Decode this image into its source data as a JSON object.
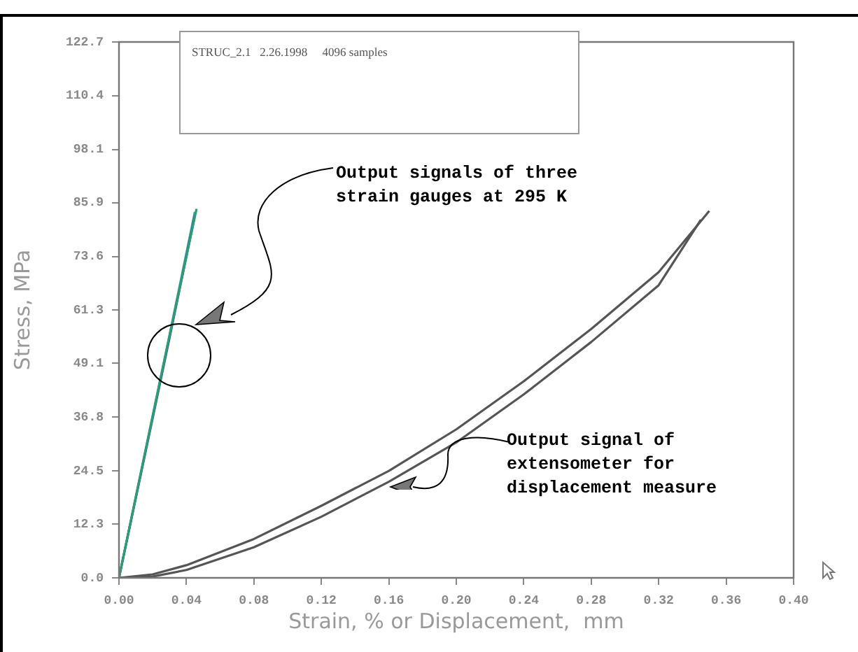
{
  "chart_data": {
    "type": "line",
    "xlabel": "Strain, % or Displacement,  mm",
    "ylabel": "Stress, MPa",
    "xlim": [
      0,
      0.4
    ],
    "ylim": [
      0,
      122.7
    ],
    "xticks": [
      {
        "value": 0,
        "label": "0.00"
      },
      {
        "value": 0.04,
        "label": "0.04"
      },
      {
        "value": 0.08,
        "label": "0.08"
      },
      {
        "value": 0.12,
        "label": "0.12"
      },
      {
        "value": 0.16,
        "label": "0.16"
      },
      {
        "value": 0.2,
        "label": "0.20"
      },
      {
        "value": 0.24,
        "label": "0.24"
      },
      {
        "value": 0.28,
        "label": "0.28"
      },
      {
        "value": 0.32,
        "label": "0.32"
      },
      {
        "value": 0.36,
        "label": "0.36"
      },
      {
        "value": 0.4,
        "label": "0.40"
      }
    ],
    "yticks": [
      {
        "value": 0,
        "label": "0.0"
      },
      12.3,
      24.5,
      36.8,
      49.1,
      61.3,
      73.6,
      85.9,
      98.1,
      110.4,
      122.7
    ],
    "grid": false,
    "legend": false,
    "marker": "none",
    "line_style": "solid",
    "series": [
      {
        "color": "#2e9e6e",
        "x": [
          0,
          0.01,
          0.02,
          0.03,
          0.046
        ],
        "values": [
          0,
          18.5,
          37,
          55.5,
          84.5
        ]
      },
      {
        "color": "#3a4aa8",
        "x": [
          0,
          0.01,
          0.02,
          0.03,
          0.045
        ],
        "values": [
          0,
          18.3,
          36.6,
          55,
          83
        ]
      },
      {
        "color": "#35a5b5",
        "x": [
          0,
          0.01,
          0.02,
          0.03,
          0.045
        ],
        "values": [
          0,
          18.6,
          37.2,
          55.6,
          83.8
        ]
      },
      {
        "color": "#555555",
        "x": [
          0,
          0.02,
          0.04,
          0.08,
          0.12,
          0.16,
          0.2,
          0.24,
          0.28,
          0.32,
          0.35
        ],
        "values": [
          0,
          0.8,
          2.9,
          8.9,
          16.5,
          24.5,
          34,
          45,
          57,
          70,
          84
        ]
      },
      {
        "color": "#555555",
        "x": [
          0,
          0.02,
          0.04,
          0.08,
          0.12,
          0.16,
          0.2,
          0.24,
          0.28,
          0.32,
          0.345
        ],
        "values": [
          0,
          0.3,
          1.8,
          7,
          14,
          22,
          31,
          42,
          54,
          67,
          82
        ]
      }
    ],
    "annotations": [
      "STRUC_2.1   2.26.1998     4096 samples",
      "Output signals of three\nstrain gauges at 295 K",
      "Output signal of\nextensometer for\ndisplacement measure"
    ]
  }
}
